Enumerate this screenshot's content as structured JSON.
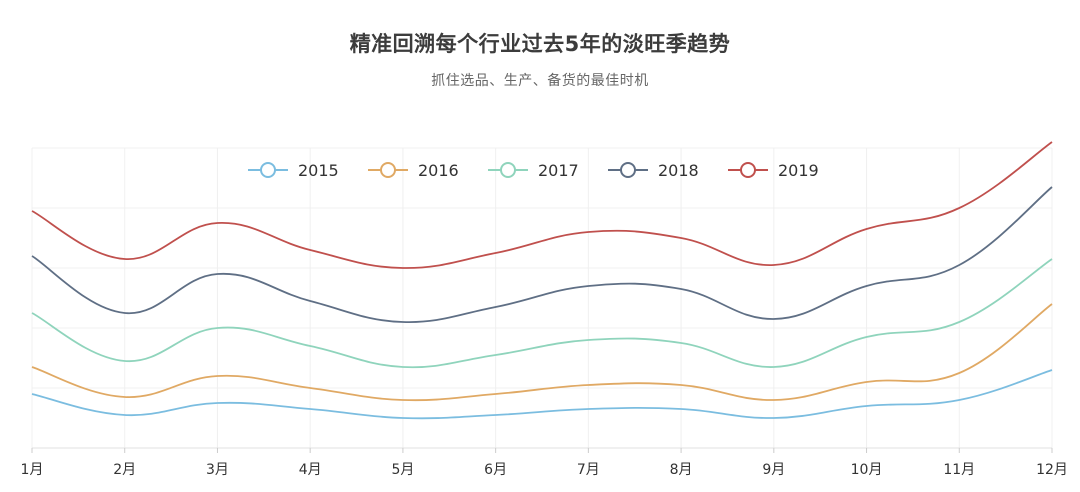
{
  "chart_data": {
    "type": "line",
    "title": "精准回溯每个行业过去5年的淡旺季趋势",
    "subtitle": "抓住选品、生产、备货的最佳时机",
    "categories": [
      "1月",
      "2月",
      "3月",
      "4月",
      "5月",
      "6月",
      "7月",
      "8月",
      "9月",
      "10月",
      "11月",
      "12月"
    ],
    "stacked": true,
    "smooth": true,
    "grid": true,
    "legend_position": "top",
    "ylim": [
      0,
      100
    ],
    "series": [
      {
        "name": "2015",
        "color": "#7bbde0",
        "values": [
          18,
          11,
          15,
          13,
          10,
          11,
          13,
          13,
          10,
          14,
          16,
          26
        ]
      },
      {
        "name": "2016",
        "color": "#e0a964",
        "values": [
          9,
          6,
          9,
          7,
          6,
          7,
          8,
          8,
          6,
          8,
          9,
          22
        ]
      },
      {
        "name": "2017",
        "color": "#8fd4bc",
        "values": [
          18,
          12,
          16,
          14,
          11,
          13,
          15,
          14,
          11,
          15,
          17,
          15
        ]
      },
      {
        "name": "2018",
        "color": "#5f6f85",
        "values": [
          19,
          16,
          18,
          15,
          15,
          16,
          18,
          18,
          16,
          17,
          19,
          24
        ]
      },
      {
        "name": "2019",
        "color": "#c0504d",
        "values": [
          15,
          18,
          17,
          17,
          18,
          18,
          18,
          17,
          18,
          19,
          19,
          15
        ]
      }
    ]
  }
}
